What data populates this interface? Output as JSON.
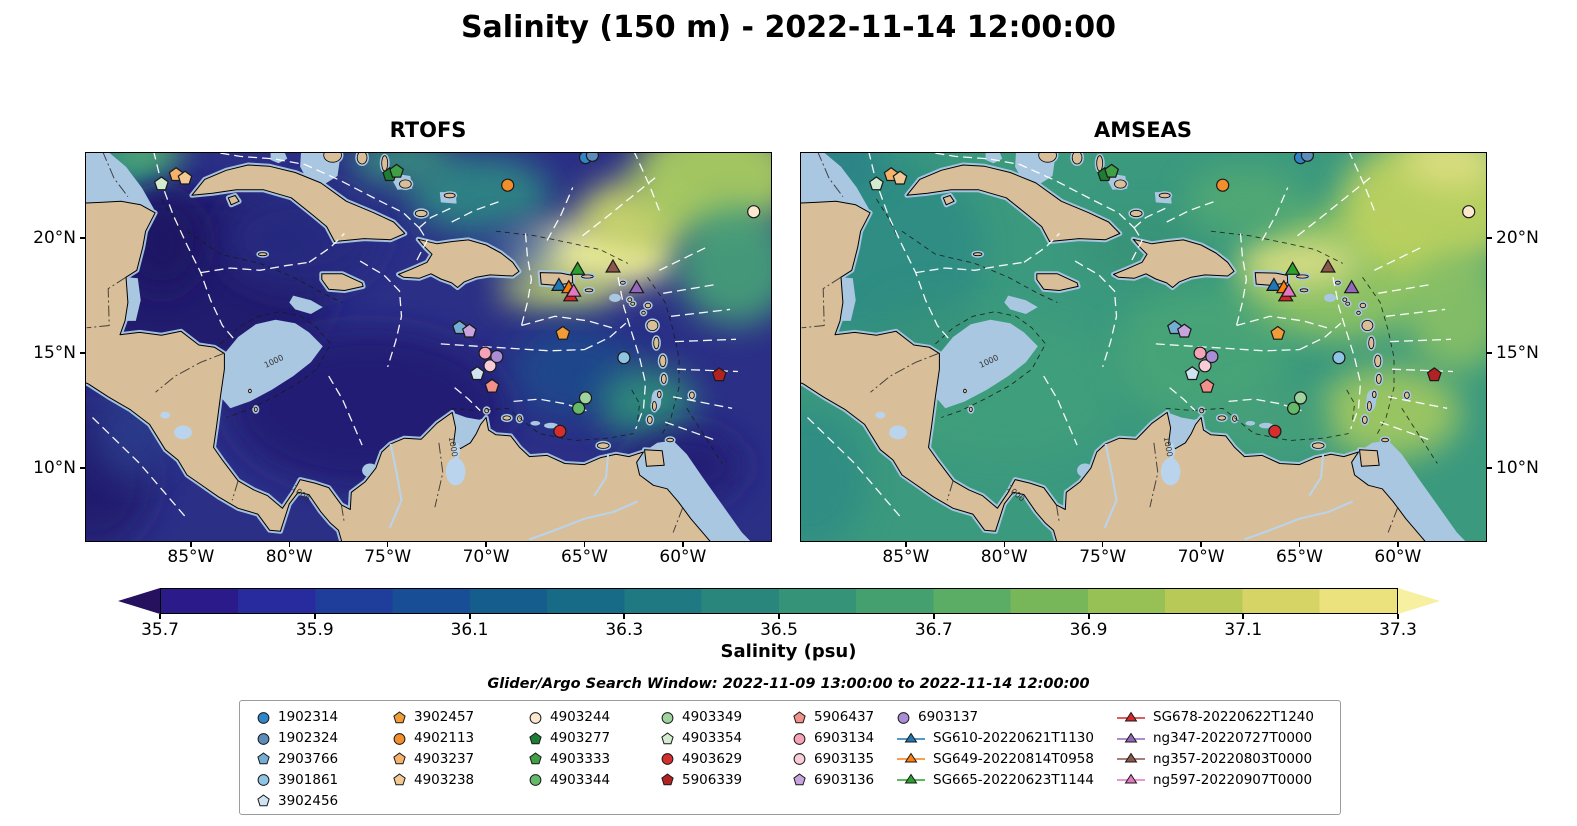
{
  "title": "Salinity (150 m) - 2022-11-14 12:00:00",
  "panels": [
    {
      "id": "rtofs",
      "title": "RTOFS"
    },
    {
      "id": "amseas",
      "title": "AMSEAS"
    }
  ],
  "axes": {
    "x_ticks": [
      "85°W",
      "80°W",
      "75°W",
      "70°W",
      "65°W",
      "60°W"
    ],
    "x_tick_lons": [
      85,
      80,
      75,
      70,
      65,
      60
    ],
    "y_ticks": [
      "20°N",
      "15°N",
      "10°N"
    ],
    "y_tick_lats": [
      20,
      15,
      10
    ]
  },
  "colorbar": {
    "label": "Salinity (psu)",
    "ticks": [
      "35.7",
      "35.9",
      "36.1",
      "36.3",
      "36.5",
      "36.7",
      "36.9",
      "37.1",
      "37.3"
    ],
    "tick_values": [
      35.7,
      35.9,
      36.1,
      36.3,
      36.5,
      36.7,
      36.9,
      37.1,
      37.3
    ],
    "colors": [
      "#26115f",
      "#2a1a8a",
      "#282b9e",
      "#1f3d9b",
      "#174e96",
      "#155d8d",
      "#176b86",
      "#1f7982",
      "#28867d",
      "#359378",
      "#45a06f",
      "#5bac64",
      "#77b75a",
      "#97c055",
      "#b8c957",
      "#d5d464",
      "#ebe27e",
      "#f7f0a0"
    ]
  },
  "search_window": "Glider/Argo Search Window: 2022-11-09 13:00:00 to 2022-11-14 12:00:00",
  "legend": {
    "columns": [
      [
        {
          "label": "1902314",
          "marker": "circle",
          "color": "#2e86c8"
        },
        {
          "label": "1902324",
          "marker": "circle",
          "color": "#5b8db8"
        },
        {
          "label": "2903766",
          "marker": "pentagon",
          "color": "#74aed4"
        },
        {
          "label": "3901861",
          "marker": "circle",
          "color": "#8ec4e4"
        },
        {
          "label": "3902456",
          "marker": "pentagon",
          "color": "#cfe3f1"
        }
      ],
      [
        {
          "label": "3902457",
          "marker": "pentagon",
          "color": "#f29c38"
        },
        {
          "label": "4902113",
          "marker": "circle",
          "color": "#f28e2b"
        },
        {
          "label": "4903237",
          "marker": "pentagon",
          "color": "#f6b26b"
        },
        {
          "label": "4903238",
          "marker": "pentagon",
          "color": "#f2c894"
        }
      ],
      [
        {
          "label": "4903244",
          "marker": "circle",
          "color": "#fbe8cf"
        },
        {
          "label": "4903277",
          "marker": "pentagon",
          "color": "#1e7d34"
        },
        {
          "label": "4903333",
          "marker": "pentagon",
          "color": "#3fa045"
        },
        {
          "label": "4903344",
          "marker": "circle",
          "color": "#63bb6a"
        }
      ],
      [
        {
          "label": "4903349",
          "marker": "circle",
          "color": "#9fd49f"
        },
        {
          "label": "4903354",
          "marker": "pentagon",
          "color": "#d3ecd0"
        },
        {
          "label": "4903629",
          "marker": "circle",
          "color": "#d62d2d"
        },
        {
          "label": "5906339",
          "marker": "pentagon",
          "color": "#b22222"
        }
      ],
      [
        {
          "label": "5906437",
          "marker": "pentagon",
          "color": "#f2918a"
        },
        {
          "label": "6903134",
          "marker": "circle",
          "color": "#f4a3b8"
        },
        {
          "label": "6903135",
          "marker": "circle",
          "color": "#f9cdd8"
        },
        {
          "label": "6903136",
          "marker": "pentagon",
          "color": "#c9a3dd"
        }
      ],
      [
        {
          "label": "6903137",
          "marker": "circle",
          "color": "#a98ed6"
        },
        {
          "label": "SG610-20220621T1130",
          "marker": "glider",
          "color": "#1f77b4"
        },
        {
          "label": "SG649-20220814T0958",
          "marker": "glider",
          "color": "#ff7f0e"
        },
        {
          "label": "SG665-20220623T1144",
          "marker": "glider",
          "color": "#2ca02c"
        }
      ],
      [
        {
          "label": "SG678-20220622T1240",
          "marker": "glider",
          "color": "#d62728"
        },
        {
          "label": "ng347-20220727T0000",
          "marker": "glider",
          "color": "#9467bd"
        },
        {
          "label": "ng357-20220803T0000",
          "marker": "glider",
          "color": "#8c564b"
        },
        {
          "label": "ng597-20220907T0000",
          "marker": "glider",
          "color": "#e377c2"
        }
      ]
    ]
  },
  "chart_data": {
    "type": "heatmap",
    "title": "Salinity (150 m) - 2022-11-14 12:00:00",
    "variable": "Salinity",
    "depth_m": 150,
    "valid_time": "2022-11-14 12:00:00",
    "panels": [
      "RTOFS",
      "AMSEAS"
    ],
    "extent": {
      "lon_w_range": [
        90.3,
        55.5
      ],
      "lat_n_range": [
        6.8,
        23.7
      ]
    },
    "colorbar": {
      "label": "Salinity (psu)",
      "range": [
        35.7,
        37.3
      ],
      "extend": "both",
      "tick_values": [
        35.7,
        35.9,
        36.1,
        36.3,
        36.5,
        36.7,
        36.9,
        37.1,
        37.3
      ]
    },
    "isobath_label": "1000",
    "field_summary": {
      "rtofs": "Fresher dark blue-purple water (~35.6-36.1 psu) over most of the Caribbean basin with bright high-salinity patch (~37.2 psu) north of Puerto Rico and yellow-green Atlantic water in the northeast.",
      "amseas": "More uniform mid-green field (~36.5-36.7 psu) across the Caribbean with yellow-green higher salinity (~36.9-37.1 psu) in the eastern basin and Atlantic."
    },
    "platforms": [
      {
        "id": "1902314",
        "type": "argo",
        "marker": "circle",
        "color": "#2e86c8",
        "lon_w": 64.95,
        "lat_n": 23.5
      },
      {
        "id": "1902324",
        "type": "argo",
        "marker": "circle",
        "color": "#5b8db8",
        "lon_w": 64.6,
        "lat_n": 23.6
      },
      {
        "id": "2903766",
        "type": "argo",
        "marker": "pentagon",
        "color": "#74aed4",
        "lon_w": 71.35,
        "lat_n": 16.1
      },
      {
        "id": "3901861",
        "type": "argo",
        "marker": "circle",
        "color": "#8ec4e4",
        "lon_w": 63.0,
        "lat_n": 14.8
      },
      {
        "id": "3902456",
        "type": "argo",
        "marker": "pentagon",
        "color": "#cfe3f1",
        "lon_w": 70.45,
        "lat_n": 14.1
      },
      {
        "id": "3902457",
        "type": "argo",
        "marker": "pentagon",
        "color": "#f29c38",
        "lon_w": 66.1,
        "lat_n": 15.85
      },
      {
        "id": "4902113",
        "type": "argo",
        "marker": "circle",
        "color": "#f28e2b",
        "lon_w": 68.9,
        "lat_n": 22.3
      },
      {
        "id": "4903237",
        "type": "argo",
        "marker": "pentagon",
        "color": "#f6b26b",
        "lon_w": 85.75,
        "lat_n": 22.75
      },
      {
        "id": "4903238",
        "type": "argo",
        "marker": "pentagon",
        "color": "#f2c894",
        "lon_w": 85.3,
        "lat_n": 22.6
      },
      {
        "id": "4903244",
        "type": "argo",
        "marker": "circle",
        "color": "#fbe8cf",
        "lon_w": 56.4,
        "lat_n": 21.15
      },
      {
        "id": "4903277",
        "type": "argo",
        "marker": "pentagon",
        "color": "#1e7d34",
        "lon_w": 74.9,
        "lat_n": 22.75
      },
      {
        "id": "4903333",
        "type": "argo",
        "marker": "pentagon",
        "color": "#3fa045",
        "lon_w": 74.55,
        "lat_n": 22.9
      },
      {
        "id": "4903344",
        "type": "argo",
        "marker": "circle",
        "color": "#63bb6a",
        "lon_w": 65.3,
        "lat_n": 12.6
      },
      {
        "id": "4903349",
        "type": "argo",
        "marker": "circle",
        "color": "#9fd49f",
        "lon_w": 64.95,
        "lat_n": 13.05
      },
      {
        "id": "4903354",
        "type": "argo",
        "marker": "pentagon",
        "color": "#d3ecd0",
        "lon_w": 86.5,
        "lat_n": 22.35
      },
      {
        "id": "4903629",
        "type": "argo",
        "marker": "circle",
        "color": "#d62d2d",
        "lon_w": 66.25,
        "lat_n": 11.6
      },
      {
        "id": "5906339",
        "type": "argo",
        "marker": "pentagon",
        "color": "#b22222",
        "lon_w": 58.15,
        "lat_n": 14.05
      },
      {
        "id": "5906437",
        "type": "argo",
        "marker": "pentagon",
        "color": "#f2918a",
        "lon_w": 69.7,
        "lat_n": 13.55
      },
      {
        "id": "6903134",
        "type": "argo",
        "marker": "circle",
        "color": "#f4a3b8",
        "lon_w": 70.05,
        "lat_n": 15.0
      },
      {
        "id": "6903135",
        "type": "argo",
        "marker": "circle",
        "color": "#f9cdd8",
        "lon_w": 69.8,
        "lat_n": 14.45
      },
      {
        "id": "6903136",
        "type": "argo",
        "marker": "pentagon",
        "color": "#c9a3dd",
        "lon_w": 70.85,
        "lat_n": 15.95
      },
      {
        "id": "6903137",
        "type": "argo",
        "marker": "circle",
        "color": "#a98ed6",
        "lon_w": 69.45,
        "lat_n": 14.85
      },
      {
        "id": "SG610-20220621T1130",
        "type": "glider",
        "marker": "triangle",
        "color": "#1f77b4",
        "lon_w": 66.3,
        "lat_n": 17.9
      },
      {
        "id": "SG649-20220814T0958",
        "type": "glider",
        "marker": "triangle",
        "color": "#ff7f0e",
        "lon_w": 65.8,
        "lat_n": 17.8
      },
      {
        "id": "SG665-20220623T1144",
        "type": "glider",
        "marker": "triangle",
        "color": "#2ca02c",
        "lon_w": 65.35,
        "lat_n": 18.6
      },
      {
        "id": "SG678-20220622T1240",
        "type": "glider",
        "marker": "triangle",
        "color": "#d62728",
        "lon_w": 65.7,
        "lat_n": 17.45
      },
      {
        "id": "ng347-20220727T0000",
        "type": "glider",
        "marker": "triangle",
        "color": "#9467bd",
        "lon_w": 62.35,
        "lat_n": 17.8
      },
      {
        "id": "ng357-20220803T0000",
        "type": "glider",
        "marker": "triangle",
        "color": "#8c564b",
        "lon_w": 63.55,
        "lat_n": 18.7
      },
      {
        "id": "ng597-20220907T0000",
        "type": "glider",
        "marker": "triangle",
        "color": "#e377c2",
        "lon_w": 65.55,
        "lat_n": 17.65
      }
    ]
  }
}
